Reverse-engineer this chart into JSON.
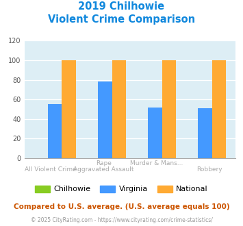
{
  "title_line1": "2019 Chilhowie",
  "title_line2": "Violent Crime Comparison",
  "chilhowie_values": [
    0,
    0,
    0,
    0
  ],
  "virginia_values": [
    55,
    78,
    52,
    51
  ],
  "national_values": [
    100,
    100,
    100,
    100
  ],
  "chilhowie_color": "#88cc22",
  "virginia_color": "#4499ff",
  "national_color": "#ffaa33",
  "bg_color": "#ddeef5",
  "ylim": [
    0,
    120
  ],
  "yticks": [
    0,
    20,
    40,
    60,
    80,
    100,
    120
  ],
  "bottom_labels": [
    "All Violent Crime",
    "Aggravated Assault",
    "",
    "Robbery"
  ],
  "top_labels": [
    "",
    "Rape",
    "Murder & Mans...",
    ""
  ],
  "footer_text": "Compared to U.S. average. (U.S. average equals 100)",
  "copyright_text": "© 2025 CityRating.com - https://www.cityrating.com/crime-statistics/",
  "title_color": "#1188dd",
  "footer_color": "#cc5500",
  "copyright_color": "#999999",
  "label_color": "#aaaaaa"
}
